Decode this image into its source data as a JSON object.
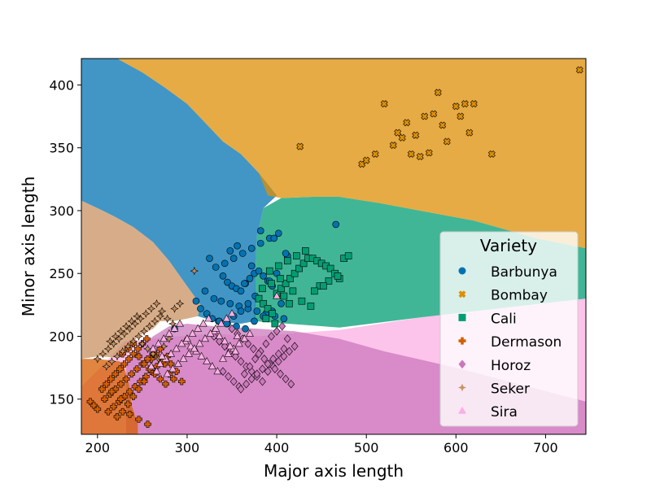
{
  "chart_data": {
    "type": "scatter",
    "title": "",
    "xlabel": "Major axis length",
    "ylabel": "Minor axis length",
    "xlim": [
      182,
      745
    ],
    "ylim": [
      122,
      421
    ],
    "xticks": [
      200,
      300,
      400,
      500,
      600,
      700
    ],
    "yticks": [
      150,
      200,
      250,
      300,
      350,
      400
    ],
    "grid": false,
    "legend": {
      "title": "Variety",
      "placement": "lower-right"
    },
    "background_regions": "decision regions of a classifier, one per class",
    "series": [
      {
        "name": "Barbunya",
        "marker": "circle",
        "color": "#0173b2",
        "x": [
          325,
          332,
          340,
          345,
          350,
          355,
          360,
          365,
          370,
          375,
          380,
          385,
          390,
          395,
          330,
          338,
          348,
          358,
          368,
          378,
          388,
          398,
          408,
          335,
          345,
          355,
          365,
          375,
          385,
          395,
          405,
          342,
          352,
          362,
          372,
          382,
          392,
          402,
          412,
          320,
          310,
          315,
          322,
          328,
          336,
          344,
          352,
          360,
          368,
          376,
          384,
          392,
          400,
          356,
          348,
          466,
          382,
          397,
          410,
          372,
          364,
          286
        ],
        "y": [
          262,
          255,
          248,
          243,
          240,
          238,
          236,
          242,
          246,
          250,
          252,
          248,
          244,
          240,
          230,
          228,
          226,
          224,
          222,
          220,
          218,
          216,
          214,
          212,
          210,
          208,
          206,
          212,
          216,
          220,
          226,
          258,
          262,
          266,
          270,
          274,
          278,
          282,
          264,
          236,
          228,
          222,
          218,
          214,
          212,
          210,
          216,
          220,
          226,
          232,
          238,
          244,
          250,
          272,
          268,
          289,
          284,
          278,
          266,
          256,
          242,
          206
        ]
      },
      {
        "name": "Bombay",
        "marker": "cross",
        "color": "#de8f05",
        "x": [
          426,
          495,
          500,
          510,
          520,
          530,
          535,
          540,
          545,
          550,
          555,
          560,
          565,
          570,
          575,
          580,
          585,
          590,
          600,
          605,
          610,
          615,
          620,
          640,
          738
        ],
        "y": [
          351,
          337,
          340,
          345,
          385,
          352,
          362,
          358,
          370,
          345,
          360,
          343,
          375,
          346,
          377,
          394,
          368,
          355,
          383,
          375,
          385,
          362,
          385,
          345,
          412
        ]
      },
      {
        "name": "Cali",
        "marker": "square",
        "color": "#029e73",
        "x": [
          380,
          385,
          390,
          395,
          400,
          405,
          410,
          415,
          420,
          425,
          430,
          435,
          440,
          445,
          450,
          455,
          460,
          465,
          470,
          475,
          480,
          388,
          398,
          408,
          418,
          428,
          438,
          448,
          458,
          468,
          392,
          402,
          412,
          422,
          432,
          442,
          452,
          384,
          394,
          404,
          414
        ],
        "y": [
          230,
          226,
          222,
          218,
          234,
          238,
          242,
          246,
          250,
          254,
          258,
          262,
          262,
          260,
          258,
          256,
          254,
          250,
          246,
          262,
          264,
          214,
          210,
          232,
          236,
          228,
          224,
          240,
          244,
          248,
          252,
          256,
          260,
          264,
          268,
          236,
          240,
          238,
          242,
          246,
          226
        ]
      },
      {
        "name": "Dermason",
        "marker": "plus",
        "color": "#d55e00",
        "x": [
          192,
          196,
          200,
          205,
          210,
          215,
          220,
          225,
          230,
          235,
          240,
          245,
          250,
          255,
          260,
          265,
          270,
          275,
          280,
          285,
          212,
          218,
          224,
          230,
          236,
          242,
          248,
          254,
          260,
          266,
          272,
          278,
          208,
          214,
          220,
          226,
          232,
          238,
          244,
          250,
          256,
          262,
          222,
          228,
          234,
          240,
          246,
          252,
          228,
          234,
          240,
          246,
          252,
          258,
          264,
          270,
          276,
          282,
          288,
          294,
          216,
          226,
          236,
          246,
          256
        ],
        "y": [
          148,
          145,
          142,
          158,
          162,
          166,
          170,
          174,
          178,
          182,
          186,
          190,
          194,
          198,
          182,
          186,
          190,
          178,
          170,
          166,
          140,
          144,
          148,
          152,
          156,
          160,
          164,
          168,
          172,
          176,
          180,
          184,
          150,
          154,
          158,
          162,
          166,
          170,
          174,
          178,
          182,
          186,
          136,
          140,
          146,
          152,
          158,
          164,
          186,
          190,
          194,
          184,
          178,
          174,
          170,
          166,
          162,
          178,
          172,
          164,
          156,
          150,
          138,
          134,
          130
        ]
      },
      {
        "name": "Horoz",
        "marker": "diamond",
        "color": "#cc78bc",
        "x": [
          330,
          336,
          342,
          348,
          354,
          360,
          366,
          372,
          378,
          384,
          390,
          396,
          402,
          408,
          414,
          420,
          340,
          346,
          352,
          358,
          364,
          370,
          376,
          382,
          388,
          394,
          400,
          406,
          412,
          350,
          356,
          362,
          368,
          374,
          380,
          386,
          392,
          398,
          404,
          410,
          416,
          360,
          366,
          372,
          378,
          384,
          390,
          396,
          402,
          408
        ],
        "y": [
          200,
          196,
          192,
          188,
          184,
          180,
          176,
          172,
          168,
          164,
          172,
          176,
          180,
          184,
          188,
          192,
          172,
          168,
          164,
          160,
          170,
          176,
          182,
          188,
          194,
          200,
          204,
          208,
          198,
          206,
          202,
          198,
          194,
          190,
          186,
          182,
          178,
          174,
          170,
          166,
          162,
          158,
          162,
          166,
          170,
          174,
          178,
          182,
          186,
          190
        ]
      },
      {
        "name": "Seker",
        "marker": "star",
        "color": "#ca9161",
        "x": [
          200,
          206,
          212,
          218,
          224,
          230,
          236,
          242,
          248,
          254,
          260,
          266,
          272,
          278,
          284,
          210,
          216,
          222,
          228,
          234,
          240,
          246,
          252,
          258,
          264,
          270,
          214,
          220,
          226,
          232,
          238,
          244,
          250,
          256,
          262,
          268,
          274,
          280,
          286,
          292,
          308
        ],
        "y": [
          182,
          186,
          190,
          194,
          198,
          202,
          206,
          210,
          214,
          218,
          222,
          226,
          220,
          214,
          210,
          176,
          180,
          184,
          188,
          192,
          196,
          200,
          204,
          208,
          212,
          216,
          196,
          200,
          204,
          208,
          212,
          216,
          194,
          190,
          186,
          182,
          192,
          198,
          222,
          226,
          252
        ]
      },
      {
        "name": "Sira",
        "marker": "triangle",
        "color": "#fbafe4",
        "x": [
          262,
          268,
          274,
          280,
          286,
          292,
          298,
          304,
          310,
          316,
          322,
          328,
          334,
          340,
          346,
          352,
          358,
          364,
          370,
          270,
          276,
          282,
          288,
          294,
          300,
          306,
          312,
          318,
          324,
          330,
          336,
          342,
          348,
          354,
          278,
          284,
          290,
          296,
          302,
          308,
          314,
          320,
          326,
          332,
          338,
          344,
          350,
          356,
          260,
          266,
          272,
          400
        ],
        "y": [
          190,
          194,
          198,
          202,
          206,
          210,
          196,
          192,
          188,
          184,
          180,
          176,
          172,
          182,
          186,
          190,
          194,
          198,
          202,
          178,
          182,
          186,
          190,
          194,
          198,
          202,
          206,
          210,
          214,
          204,
          200,
          196,
          192,
          188,
          170,
          174,
          178,
          182,
          186,
          190,
          194,
          198,
          202,
          206,
          210,
          214,
          218,
          200,
          176,
          172,
          184,
          232
        ]
      }
    ]
  }
}
